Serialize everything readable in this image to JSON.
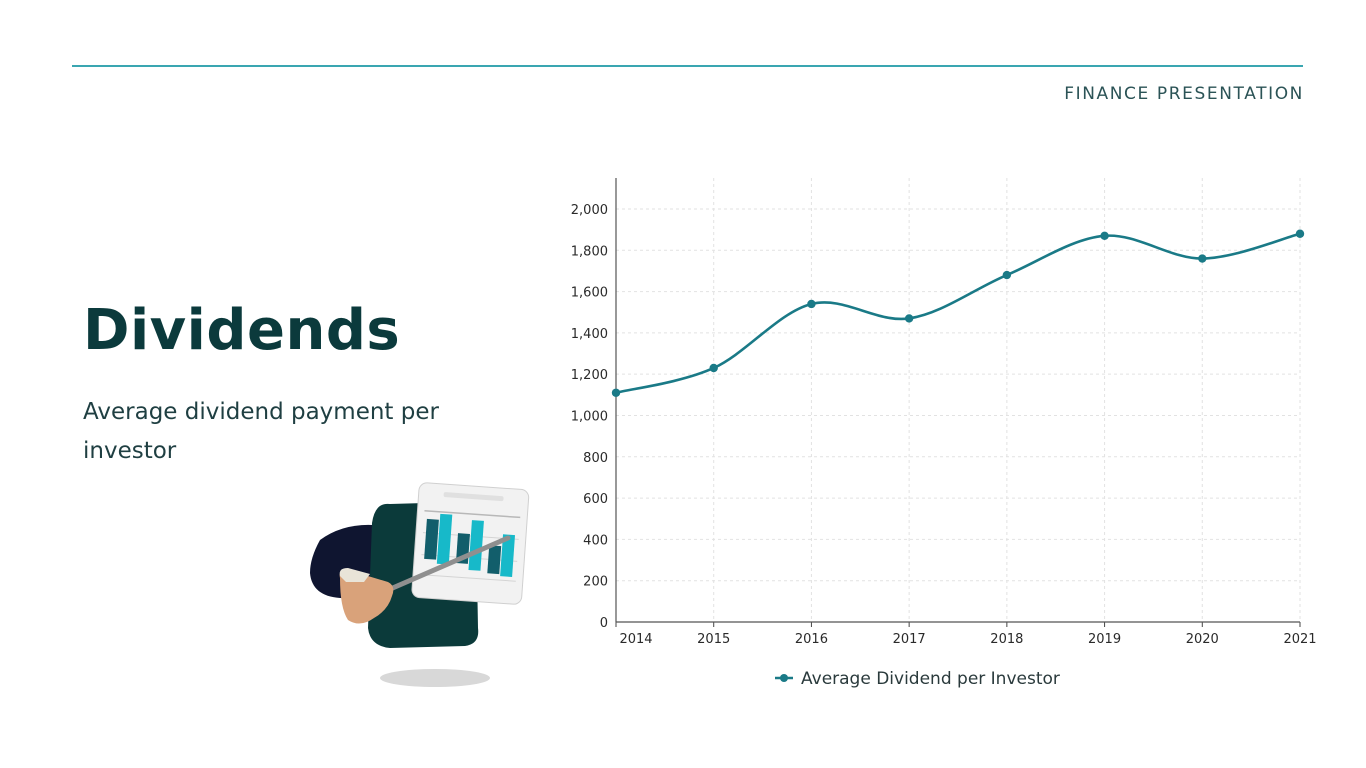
{
  "header": {
    "label": "FINANCE PRESENTATION"
  },
  "slide": {
    "title": "Dividends",
    "subtitle": "Average dividend payment per investor"
  },
  "colors": {
    "accent": "#1a7a87",
    "rule": "#3aa6b1",
    "title": "#0b3a3c"
  },
  "illustration": {
    "icon": "presenter-with-chart-icon"
  },
  "chart_data": {
    "type": "line",
    "x": [
      "2014",
      "2015",
      "2016",
      "2017",
      "2018",
      "2019",
      "2020",
      "2021"
    ],
    "series": [
      {
        "name": "Average Dividend per Investor",
        "values": [
          1110,
          1230,
          1540,
          1470,
          1680,
          1870,
          1760,
          1880
        ]
      }
    ],
    "ylim": [
      0,
      2150
    ],
    "yticks": [
      0,
      200,
      400,
      600,
      800,
      1000,
      1200,
      1400,
      1600,
      1800,
      2000
    ],
    "ytick_labels": [
      "0",
      "200",
      "400",
      "600",
      "800",
      "1,000",
      "1,200",
      "1,400",
      "1,600",
      "1,800",
      "2,000"
    ],
    "grid": true,
    "legend_position": "bottom-center",
    "smooth": true
  }
}
